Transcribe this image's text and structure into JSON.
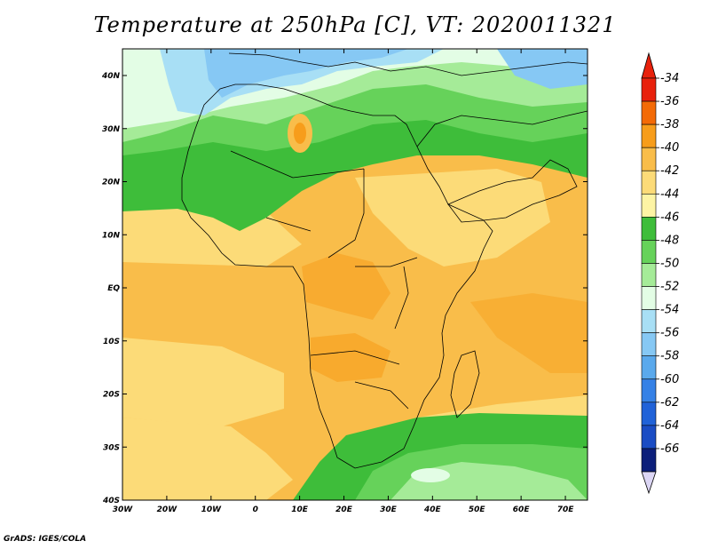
{
  "title": "Temperature at 250hPa [C], VT: 2020011321",
  "credit": "GrADS: IGES/COLA",
  "map": {
    "lon_ticks": [
      "30W",
      "20W",
      "10W",
      "0",
      "10E",
      "20E",
      "30E",
      "40E",
      "50E",
      "60E",
      "70E"
    ],
    "lat_ticks": [
      "40N",
      "30N",
      "20N",
      "10N",
      "EQ",
      "10S",
      "20S",
      "30S",
      "40S"
    ]
  },
  "colorbar": {
    "labels": [
      "-34",
      "-36",
      "-38",
      "-40",
      "-42",
      "-44",
      "-46",
      "-48",
      "-50",
      "-52",
      "-54",
      "-56",
      "-58",
      "-60",
      "-62",
      "-64",
      "-66"
    ],
    "colors": [
      "#e8210c",
      "#f36a06",
      "#f79d1b",
      "#f9bd4a",
      "#fcdb78",
      "#fdf4a4",
      "#3ebd3a",
      "#66d25a",
      "#a5eb98",
      "#e3fde5",
      "#a8dff5",
      "#86c8f4",
      "#5aa9ec",
      "#3581e6",
      "#2062d8",
      "#1a4cc4",
      "#0c1f7a"
    ],
    "top_arrow_color": "#e8210c",
    "bottom_arrow_color": "#dcd6f5"
  }
}
